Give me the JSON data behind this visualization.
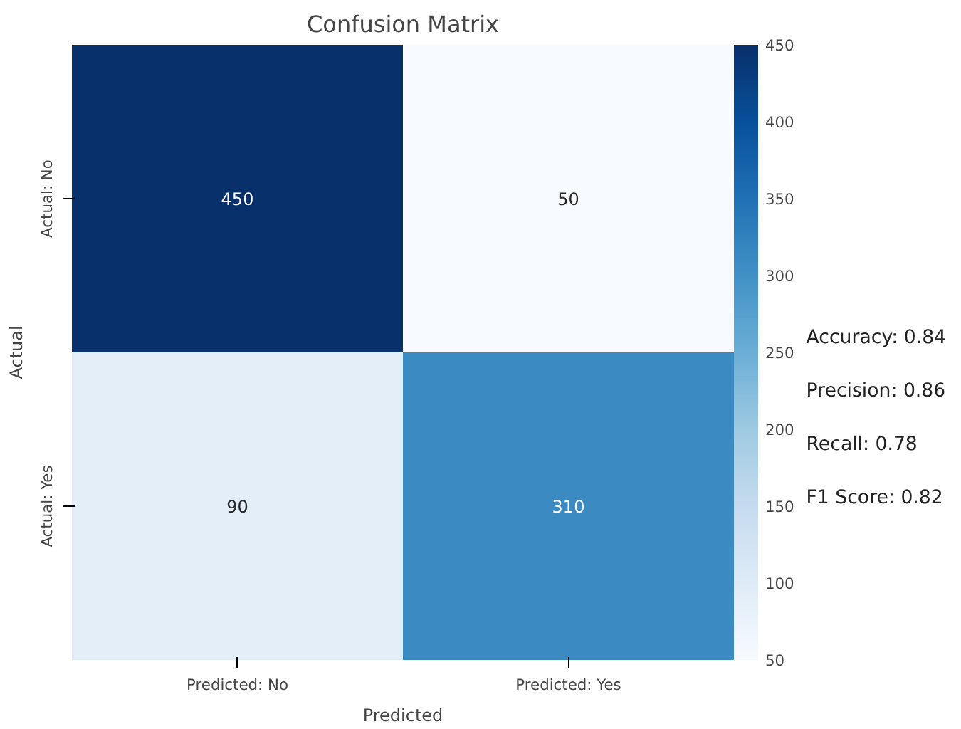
{
  "chart_data": {
    "type": "heatmap",
    "title": "Confusion Matrix",
    "xlabel": "Predicted",
    "ylabel": "Actual",
    "categories": [
      "Predicted: No",
      "Predicted: Yes"
    ],
    "y_categories": [
      "Actual: No",
      "Actual: Yes"
    ],
    "cells": [
      [
        450,
        50
      ],
      [
        90,
        310
      ]
    ],
    "clim": [
      50,
      450
    ],
    "cticks": [
      50,
      100,
      150,
      200,
      250,
      300,
      350,
      400,
      450
    ],
    "data_labels": true,
    "annotations": [
      "Accuracy: 0.84",
      "Precision: 0.86",
      "Recall: 0.78",
      "F1 Score: 0.82"
    ]
  }
}
